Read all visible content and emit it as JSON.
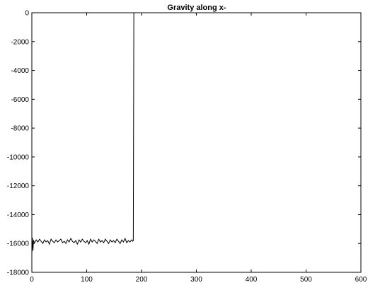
{
  "chart_data": {
    "type": "line",
    "title": "Gravity along x-",
    "xlabel": "",
    "ylabel": "",
    "xlim": [
      0,
      600
    ],
    "ylim": [
      -18000,
      0
    ],
    "xticks": [
      0,
      100,
      200,
      300,
      400,
      500,
      600
    ],
    "yticks": [
      0,
      -2000,
      -4000,
      -6000,
      -8000,
      -10000,
      -12000,
      -14000,
      -16000,
      -18000
    ],
    "grid": false,
    "legend": "none",
    "series": [
      {
        "color": "#000000",
        "x": [
          0,
          1,
          2,
          3,
          5,
          8,
          11,
          14,
          17,
          20,
          23,
          26,
          29,
          32,
          35,
          38,
          41,
          44,
          47,
          50,
          53,
          56,
          59,
          62,
          65,
          68,
          71,
          74,
          77,
          80,
          83,
          86,
          89,
          92,
          95,
          98,
          101,
          104,
          107,
          110,
          113,
          116,
          119,
          122,
          125,
          128,
          131,
          134,
          137,
          140,
          143,
          146,
          149,
          152,
          155,
          158,
          161,
          164,
          167,
          170,
          173,
          176,
          179,
          182,
          184,
          185,
          185.5,
          186
        ],
        "y": [
          -16700,
          -15600,
          -16500,
          -15800,
          -15950,
          -15750,
          -15900,
          -15700,
          -15850,
          -16000,
          -15750,
          -15900,
          -15800,
          -16050,
          -15700,
          -15850,
          -15950,
          -15750,
          -15900,
          -15800,
          -15700,
          -15950,
          -15850,
          -16000,
          -15750,
          -15900,
          -15650,
          -15850,
          -15950,
          -15800,
          -16050,
          -15750,
          -15900,
          -15700,
          -15850,
          -15950,
          -15800,
          -16050,
          -15700,
          -15900,
          -15750,
          -15850,
          -16000,
          -15700,
          -15900,
          -15800,
          -15950,
          -15700,
          -15850,
          -16000,
          -15750,
          -15900,
          -15800,
          -15950,
          -15700,
          -15850,
          -16000,
          -15750,
          -15900,
          -15650,
          -15950,
          -15800,
          -15900,
          -15750,
          -15850,
          -15800,
          -8000,
          0
        ]
      }
    ]
  }
}
